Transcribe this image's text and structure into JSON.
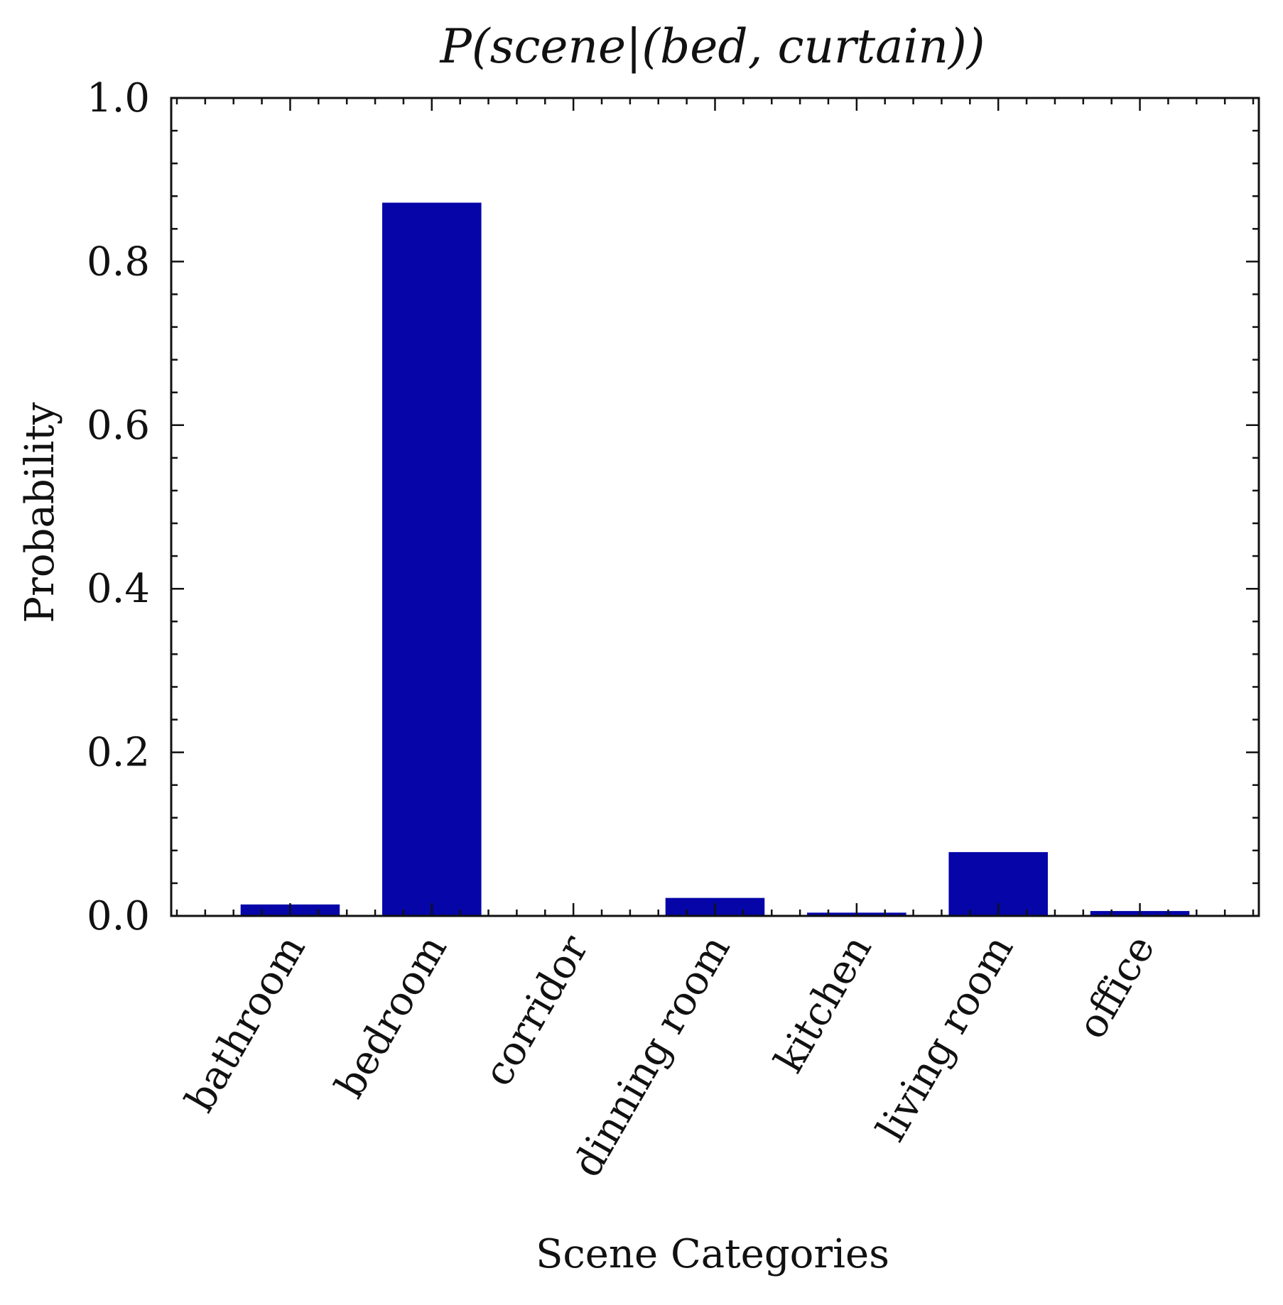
{
  "chart_data": {
    "type": "bar",
    "title": "P(scene|(bed, curtain))",
    "xlabel": "Scene Categories",
    "ylabel": "Probability",
    "categories": [
      "bathroom",
      "bedroom",
      "corridor",
      "dinning room",
      "kitchen",
      "living room",
      "office"
    ],
    "values": [
      0.014,
      0.872,
      0.0,
      0.022,
      0.004,
      0.078,
      0.006
    ],
    "ylim": [
      0.0,
      1.0
    ],
    "yticks": [
      "0.0",
      "0.2",
      "0.4",
      "0.6",
      "0.8",
      "1.0"
    ],
    "grid": false,
    "legend": "none",
    "bar_color": "#0505a8"
  }
}
